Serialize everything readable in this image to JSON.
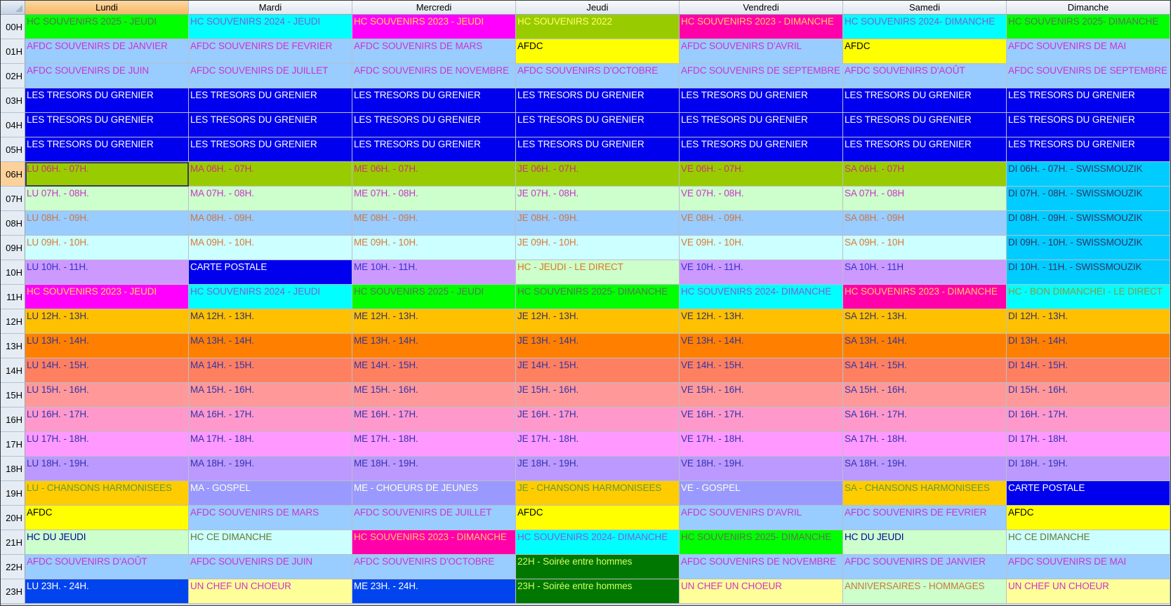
{
  "days": [
    "Lundi",
    "Mardi",
    "Mercredi",
    "Jeudi",
    "Vendredi",
    "Samedi",
    "Dimanche"
  ],
  "active_day": 0,
  "active_hour": 6,
  "selected_cell": {
    "day": "Lundi",
    "hour": "06H"
  },
  "styles": {
    "g": {
      "bg": "#00ff00",
      "fg": "#5b7256"
    },
    "c": {
      "bg": "#00ffff",
      "fg": "#7a5fd6"
    },
    "m": {
      "bg": "#ff00ff",
      "fg": "#ffd84a"
    },
    "ol": {
      "bg": "#99cc00",
      "fg": "#ffff66"
    },
    "hp": {
      "bg": "#ff00aa",
      "fg": "#ffcc66"
    },
    "lb": {
      "bg": "#99ccff",
      "fg": "#cc33cc"
    },
    "y": {
      "bg": "#ffff00",
      "fg": "#000000"
    },
    "b": {
      "bg": "#0000ee",
      "fg": "#ffffff"
    },
    "r6": {
      "bg": "#99cc00",
      "fg": "#cc3377"
    },
    "r7": {
      "bg": "#ccffcc",
      "fg": "#cc33cc"
    },
    "r8": {
      "bg": "#99ccff",
      "fg": "#cc7744"
    },
    "r9": {
      "bg": "#ccffff",
      "fg": "#dd7733"
    },
    "r10": {
      "bg": "#cc99ff",
      "fg": "#3333cc"
    },
    "sw": {
      "bg": "#00ccff",
      "fg": "#333366"
    },
    "j10": {
      "bg": "#ccffcc",
      "fg": "#dd7722"
    },
    "c2": {
      "bg": "#00ffff",
      "fg": "#889944"
    },
    "r12": {
      "bg": "#ffc000",
      "fg": "#333366"
    },
    "r13": {
      "bg": "#ff8000",
      "fg": "#333399"
    },
    "r14": {
      "bg": "#ff8060",
      "fg": "#3333aa"
    },
    "r15": {
      "bg": "#ff9999",
      "fg": "#3333aa"
    },
    "r16": {
      "bg": "#ff99cc",
      "fg": "#3333aa"
    },
    "r17": {
      "bg": "#ff99ff",
      "fg": "#3333aa"
    },
    "r18": {
      "bg": "#bb99ff",
      "fg": "#3333aa"
    },
    "or": {
      "bg": "#ffcc00",
      "fg": "#669933"
    },
    "pv": {
      "bg": "#9999ff",
      "fg": "#ffffee"
    },
    "mg": {
      "bg": "#ccffcc",
      "fg": "#000099"
    },
    "lc": {
      "bg": "#ccffff",
      "fg": "#667733"
    },
    "dg": {
      "bg": "#007700",
      "fg": "#ccff66"
    },
    "b2": {
      "bg": "#0044ee",
      "fg": "#ffffff"
    },
    "ly": {
      "bg": "#ffff99",
      "fg": "#cc33cc"
    },
    "ann": {
      "bg": "#ccffcc",
      "fg": "#cc7733"
    }
  },
  "rows": [
    {
      "hour": "00H",
      "cells": [
        [
          "HC SOUVENIRS 2025 - JEUDI",
          "g"
        ],
        [
          "HC SOUVENIRS 2024 - JEUDI",
          "c"
        ],
        [
          "HC SOUVENIRS 2023 - JEUDI",
          "m"
        ],
        [
          "HC SOUVENIRS 2022",
          "ol"
        ],
        [
          "HC SOUVENIRS 2023 - DIMANCHE",
          "hp"
        ],
        [
          "HC SOUVENIRS 2024- DIMANCHE",
          "c"
        ],
        [
          "HC SOUVENIRS 2025- DIMANCHE",
          "g"
        ]
      ]
    },
    {
      "hour": "01H",
      "cells": [
        [
          "AFDC SOUVENIRS DE JANVIER",
          "lb"
        ],
        [
          "AFDC SOUVENIRS DE FEVRIER",
          "lb"
        ],
        [
          "AFDC SOUVENIRS DE MARS",
          "lb"
        ],
        [
          "AFDC",
          "y"
        ],
        [
          "AFDC SOUVENIRS D'AVRIL",
          "lb"
        ],
        [
          "AFDC",
          "y"
        ],
        [
          "AFDC SOUVENIRS DE MAI",
          "lb"
        ]
      ]
    },
    {
      "hour": "02H",
      "cells": [
        [
          "AFDC SOUVENIRS DE JUIN",
          "lb"
        ],
        [
          "AFDC SOUVENIRS DE JUILLET",
          "lb"
        ],
        [
          "AFDC SOUVENIRS DE NOVEMBRE",
          "lb"
        ],
        [
          "AFDC SOUVENIRS D'OCTOBRE",
          "lb"
        ],
        [
          "AFDC SOUVENIRS DE SEPTEMBRE",
          "lb"
        ],
        [
          "AFDC SOUVENIRS D'AOÛT",
          "lb"
        ],
        [
          "AFDC SOUVENIRS DE SEPTEMBRE",
          "lb"
        ]
      ]
    },
    {
      "hour": "03H",
      "cells": [
        [
          "LES TRESORS DU GRENIER",
          "b"
        ],
        [
          "LES TRESORS DU GRENIER",
          "b"
        ],
        [
          "LES TRESORS DU GRENIER",
          "b"
        ],
        [
          "LES TRESORS DU GRENIER",
          "b"
        ],
        [
          "LES TRESORS DU GRENIER",
          "b"
        ],
        [
          "LES TRESORS DU GRENIER",
          "b"
        ],
        [
          "LES TRESORS DU GRENIER",
          "b"
        ]
      ]
    },
    {
      "hour": "04H",
      "cells": [
        [
          "LES TRESORS DU GRENIER",
          "b"
        ],
        [
          "LES TRESORS DU GRENIER",
          "b"
        ],
        [
          "LES TRESORS DU GRENIER",
          "b"
        ],
        [
          "LES TRESORS DU GRENIER",
          "b"
        ],
        [
          "LES TRESORS DU GRENIER",
          "b"
        ],
        [
          "LES TRESORS DU GRENIER",
          "b"
        ],
        [
          "LES TRESORS DU GRENIER",
          "b"
        ]
      ]
    },
    {
      "hour": "05H",
      "cells": [
        [
          "LES TRESORS DU GRENIER",
          "b"
        ],
        [
          "LES TRESORS DU GRENIER",
          "b"
        ],
        [
          "LES TRESORS DU GRENIER",
          "b"
        ],
        [
          "LES TRESORS DU GRENIER",
          "b"
        ],
        [
          "LES TRESORS DU GRENIER",
          "b"
        ],
        [
          "LES TRESORS DU GRENIER",
          "b"
        ],
        [
          "LES TRESORS DU GRENIER",
          "b"
        ]
      ]
    },
    {
      "hour": "06H",
      "cells": [
        [
          "LU 06H. - 07H.",
          "r6"
        ],
        [
          "MA 06H. - 07H.",
          "r6"
        ],
        [
          "ME 06H. - 07H.",
          "r6"
        ],
        [
          "JE 06H. - 07H.",
          "r6"
        ],
        [
          "VE 06H. - 07H.",
          "r6"
        ],
        [
          "SA 06H. - 07H",
          "r6"
        ],
        [
          "DI 06H. - 07H. - SWISSMOUZIK",
          "sw"
        ]
      ]
    },
    {
      "hour": "07H",
      "cells": [
        [
          "LU 07H. - 08H.",
          "r7"
        ],
        [
          "MA 07H. - 08H.",
          "r7"
        ],
        [
          "ME 07H. - 08H.",
          "r7"
        ],
        [
          "JE 07H. - 08H.",
          "r7"
        ],
        [
          "VE 07H. - 08H.",
          "r7"
        ],
        [
          "SA 07H. - 08H",
          "r7"
        ],
        [
          "DI 07H. - 08H. - SWISSMOUZIK",
          "sw"
        ]
      ]
    },
    {
      "hour": "08H",
      "cells": [
        [
          "LU 08H. - 09H.",
          "r8"
        ],
        [
          "MA 08H. - 09H.",
          "r8"
        ],
        [
          "ME 08H. - 09H.",
          "r8"
        ],
        [
          "JE 08H. - 09H.",
          "r8"
        ],
        [
          "VE 08H. - 09H.",
          "r8"
        ],
        [
          "SA 08H. - 09H",
          "r8"
        ],
        [
          "DI 08H. - 09H. - SWISSMOUZIK",
          "sw"
        ]
      ]
    },
    {
      "hour": "09H",
      "cells": [
        [
          "LU 09H. - 10H.",
          "r9"
        ],
        [
          "MA 09H. - 10H.",
          "r9"
        ],
        [
          "ME 09H. - 10H.",
          "r9"
        ],
        [
          "JE 09H. - 10H.",
          "r9"
        ],
        [
          "VE 09H. - 10H.",
          "r9"
        ],
        [
          "SA 09H. - 10H",
          "r9"
        ],
        [
          "DI 09H. - 10H. - SWISSMOUZIK",
          "sw"
        ]
      ]
    },
    {
      "hour": "10H",
      "cells": [
        [
          "LU 10H. - 11H.",
          "r10"
        ],
        [
          "CARTE POSTALE",
          "b"
        ],
        [
          "ME 10H. - 11H.",
          "r10"
        ],
        [
          "HC - JEUDI -  LE DIRECT",
          "j10"
        ],
        [
          "VE 10H. - 11H.",
          "r10"
        ],
        [
          "SA 10H. - 11H",
          "r10"
        ],
        [
          "DI 10H. - 11H. - SWISSMOUZIK",
          "sw"
        ]
      ]
    },
    {
      "hour": "11H",
      "cells": [
        [
          "HC SOUVENIRS 2023 - JEUDI",
          "m"
        ],
        [
          "HC SOUVENIRS 2024 - JEUDI",
          "c"
        ],
        [
          "HC SOUVENIRS 2025 - JEUDI",
          "g"
        ],
        [
          "HC SOUVENIRS 2025- DIMANCHE",
          "g"
        ],
        [
          "HC SOUVENIRS 2024- DIMANCHE",
          "c"
        ],
        [
          "HC SOUVENIRS 2023 - DIMANCHE",
          "hp"
        ],
        [
          "HC - BON DIMANCHEI - LE DIRECT",
          "c2"
        ]
      ]
    },
    {
      "hour": "12H",
      "cells": [
        [
          "LU 12H. - 13H.",
          "r12"
        ],
        [
          "MA 12H. - 13H.",
          "r12"
        ],
        [
          "ME 12H. - 13H.",
          "r12"
        ],
        [
          "JE 12H. - 13H.",
          "r12"
        ],
        [
          "VE 12H. - 13H.",
          "r12"
        ],
        [
          "SA 12H. - 13H.",
          "r12"
        ],
        [
          "DI 12H. - 13H.",
          "r12"
        ]
      ]
    },
    {
      "hour": "13H",
      "cells": [
        [
          "LU 13H. - 14H.",
          "r13"
        ],
        [
          "MA 13H. - 14H.",
          "r13"
        ],
        [
          "ME 13H. - 14H.",
          "r13"
        ],
        [
          "JE 13H. - 14H.",
          "r13"
        ],
        [
          "VE 13H. - 14H.",
          "r13"
        ],
        [
          "SA 13H. - 14H.",
          "r13"
        ],
        [
          "DI 13H. - 14H.",
          "r13"
        ]
      ]
    },
    {
      "hour": "14H",
      "cells": [
        [
          "LU 14H. - 15H.",
          "r14"
        ],
        [
          "MA 14H. - 15H.",
          "r14"
        ],
        [
          "ME 14H. - 15H.",
          "r14"
        ],
        [
          "JE 14H. - 15H.",
          "r14"
        ],
        [
          "VE 14H. - 15H.",
          "r14"
        ],
        [
          "SA 14H. - 15H.",
          "r14"
        ],
        [
          "DI 14H. - 15H.",
          "r14"
        ]
      ]
    },
    {
      "hour": "15H",
      "cells": [
        [
          "LU 15H. - 16H.",
          "r15"
        ],
        [
          "MA 15H. - 16H.",
          "r15"
        ],
        [
          "ME 15H. - 16H.",
          "r15"
        ],
        [
          "JE 15H. - 16H.",
          "r15"
        ],
        [
          "VE 15H. - 16H.",
          "r15"
        ],
        [
          "SA 15H. - 16H.",
          "r15"
        ],
        [
          "DI 15H. - 16H.",
          "r15"
        ]
      ]
    },
    {
      "hour": "16H",
      "cells": [
        [
          "LU 16H. - 17H.",
          "r16"
        ],
        [
          "MA 16H. - 17H.",
          "r16"
        ],
        [
          "ME 16H. - 17H.",
          "r16"
        ],
        [
          "JE 16H. - 17H.",
          "r16"
        ],
        [
          "VE 16H. - 17H.",
          "r16"
        ],
        [
          "SA 16H. - 17H.",
          "r16"
        ],
        [
          "DI 16H. - 17H.",
          "r16"
        ]
      ]
    },
    {
      "hour": "17H",
      "cells": [
        [
          "LU 17H. - 18H.",
          "r17"
        ],
        [
          "MA 17H. - 18H.",
          "r17"
        ],
        [
          "ME 17H. - 18H.",
          "r17"
        ],
        [
          "JE 17H. - 18H.",
          "r17"
        ],
        [
          "VE 17H. - 18H.",
          "r17"
        ],
        [
          "SA 17H. - 18H.",
          "r17"
        ],
        [
          "DI 17H. - 18H.",
          "r17"
        ]
      ]
    },
    {
      "hour": "18H",
      "cells": [
        [
          "LU 18H. - 19H.",
          "r18"
        ],
        [
          "MA 18H. - 19H.",
          "r18"
        ],
        [
          "ME 18H. - 19H.",
          "r18"
        ],
        [
          "JE 18H. - 19H.",
          "r18"
        ],
        [
          "VE 18H. - 19H.",
          "r18"
        ],
        [
          "SA 18H. - 19H.",
          "r18"
        ],
        [
          "DI 18H. - 19H.",
          "r18"
        ]
      ]
    },
    {
      "hour": "19H",
      "cells": [
        [
          "LU - CHANSONS HARMONISEES",
          "or"
        ],
        [
          "MA - GOSPEL",
          "pv"
        ],
        [
          "ME - CHOEURS DE JEUNES",
          "pv"
        ],
        [
          "JE - CHANSONS HARMONISEES",
          "or"
        ],
        [
          "VE - GOSPEL",
          "pv"
        ],
        [
          "SA - CHANSONS HARMONISEES",
          "or"
        ],
        [
          "CARTE POSTALE",
          "b"
        ]
      ]
    },
    {
      "hour": "20H",
      "cells": [
        [
          "AFDC",
          "y"
        ],
        [
          "AFDC SOUVENIRS DE MARS",
          "lb"
        ],
        [
          "AFDC SOUVENIRS DE JUILLET",
          "lb"
        ],
        [
          "AFDC",
          "y"
        ],
        [
          "AFDC SOUVENIRS D'AVRIL",
          "lb"
        ],
        [
          "AFDC SOUVENIRS DE FEVRIER",
          "lb"
        ],
        [
          "AFDC",
          "y"
        ]
      ]
    },
    {
      "hour": "21H",
      "cells": [
        [
          "HC DU JEUDI",
          "mg"
        ],
        [
          "HC CE DIMANCHE",
          "lc"
        ],
        [
          "HC SOUVENIRS 2023 - DIMANCHE",
          "hp"
        ],
        [
          "HC SOUVENIRS 2024- DIMANCHE",
          "c"
        ],
        [
          "HC SOUVENIRS 2025- DIMANCHE",
          "g"
        ],
        [
          "HC DU JEUDI",
          "mg"
        ],
        [
          "HC CE DIMANCHE",
          "lc"
        ]
      ]
    },
    {
      "hour": "22H",
      "cells": [
        [
          "AFDC SOUVENIRS D'AOÛT",
          "lb"
        ],
        [
          "AFDC SOUVENIRS DE JUIN",
          "lb"
        ],
        [
          "AFDC SOUVENIRS D'OCTOBRE",
          "lb"
        ],
        [
          "22H - Soirée entre hommes",
          "dg"
        ],
        [
          "AFDC SOUVENIRS DE NOVEMBRE",
          "lb"
        ],
        [
          "AFDC SOUVENIRS DE JANVIER",
          "lb"
        ],
        [
          "AFDC SOUVENIRS DE MAI",
          "lb"
        ]
      ]
    },
    {
      "hour": "23H",
      "cells": [
        [
          "LU 23H. - 24H.",
          "b2"
        ],
        [
          "UN CHEF UN CHOEUR",
          "ly"
        ],
        [
          "ME 23H. - 24H.",
          "b2"
        ],
        [
          "23H - Soirée entre hommes",
          "dg"
        ],
        [
          "UN CHEF UN CHOEUR",
          "ly"
        ],
        [
          "ANNIVERSAIRES - HOMMAGES",
          "ann"
        ],
        [
          "UN CHEF UN CHOEUR",
          "ly"
        ]
      ]
    }
  ]
}
